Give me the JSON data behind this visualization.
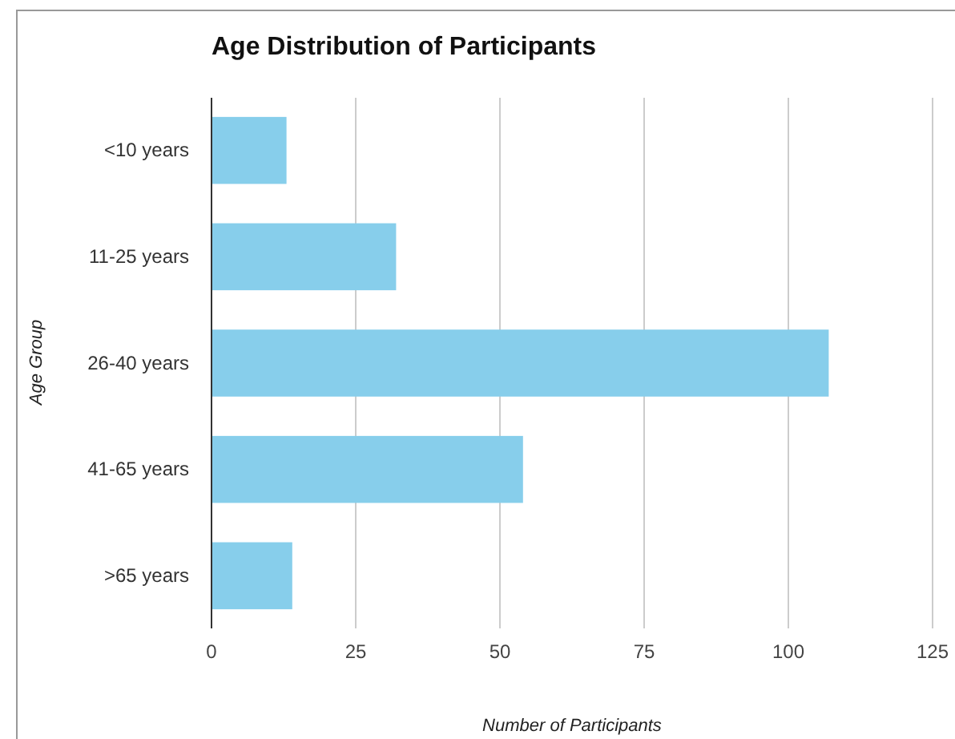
{
  "chart_data": {
    "type": "bar",
    "orientation": "horizontal",
    "title": "Age Distribution of Participants",
    "xlabel": "Number of Participants",
    "ylabel": "Age Group",
    "categories": [
      "<10 years",
      "11-25 years",
      "26-40 years",
      "41-65 years",
      ">65 years"
    ],
    "values": [
      13,
      32,
      107,
      54,
      14
    ],
    "color": "#87ceeb",
    "xlim": [
      0,
      125
    ],
    "xticks": [
      0,
      25,
      50,
      75,
      100,
      125
    ],
    "grid": "x"
  }
}
